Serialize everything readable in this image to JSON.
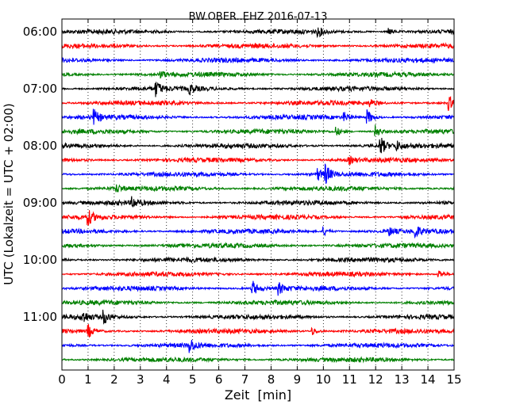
{
  "chart_data": {
    "type": "line",
    "title": "BW.OBER..EHZ 2016-07-13",
    "xlabel": "Zeit  [min]",
    "ylabel": "UTC (Lokalzeit = UTC + 02:00)",
    "xlim": [
      0,
      15
    ],
    "x_ticks": [
      0,
      1,
      2,
      3,
      4,
      5,
      6,
      7,
      8,
      9,
      10,
      11,
      12,
      13,
      14,
      15
    ],
    "y_tick_labels": [
      "06:00",
      "07:00",
      "08:00",
      "09:00",
      "10:00",
      "11:00"
    ],
    "trace_start_times": [
      "06:00",
      "06:15",
      "06:30",
      "06:45",
      "07:00",
      "07:15",
      "07:30",
      "07:45",
      "08:00",
      "08:15",
      "08:30",
      "08:45",
      "09:00",
      "09:15",
      "09:30",
      "09:45",
      "10:00",
      "10:15",
      "10:30",
      "10:45",
      "11:00",
      "11:15",
      "11:30",
      "11:45"
    ],
    "trace_duration_min": 15,
    "trace_colors": [
      "#000000",
      "#ff0000",
      "#0000ff",
      "#008000"
    ],
    "grid": {
      "x": "dotted",
      "y": false
    },
    "events": [
      {
        "trace": "06:00",
        "minute": 9.8,
        "amp": 0.6
      },
      {
        "trace": "06:00",
        "minute": 12.5,
        "amp": 0.5
      },
      {
        "trace": "06:45",
        "minute": 3.8,
        "amp": 0.4
      },
      {
        "trace": "07:00",
        "minute": 3.6,
        "amp": 1.0
      },
      {
        "trace": "07:00",
        "minute": 4.9,
        "amp": 0.6
      },
      {
        "trace": "07:15",
        "minute": 14.8,
        "amp": 1.0
      },
      {
        "trace": "07:15",
        "minute": 11.8,
        "amp": 0.5
      },
      {
        "trace": "07:30",
        "minute": 1.2,
        "amp": 1.1
      },
      {
        "trace": "07:30",
        "minute": 10.8,
        "amp": 0.6
      },
      {
        "trace": "07:30",
        "minute": 11.7,
        "amp": 1.0
      },
      {
        "trace": "07:45",
        "minute": 10.5,
        "amp": 0.6
      },
      {
        "trace": "07:45",
        "minute": 12.0,
        "amp": 0.9
      },
      {
        "trace": "08:00",
        "minute": 12.2,
        "amp": 1.2
      },
      {
        "trace": "08:00",
        "minute": 12.8,
        "amp": 0.6
      },
      {
        "trace": "08:15",
        "minute": 11.0,
        "amp": 0.5
      },
      {
        "trace": "08:30",
        "minute": 10.1,
        "amp": 1.2
      },
      {
        "trace": "08:30",
        "minute": 9.8,
        "amp": 0.8
      },
      {
        "trace": "08:45",
        "minute": 2.1,
        "amp": 0.5
      },
      {
        "trace": "09:00",
        "minute": 2.7,
        "amp": 0.7
      },
      {
        "trace": "09:15",
        "minute": 1.0,
        "amp": 1.0
      },
      {
        "trace": "09:30",
        "minute": 13.5,
        "amp": 0.9
      },
      {
        "trace": "09:30",
        "minute": 10.0,
        "amp": 0.6
      },
      {
        "trace": "09:30",
        "minute": 12.5,
        "amp": 0.6
      },
      {
        "trace": "10:15",
        "minute": 14.4,
        "amp": 0.7
      },
      {
        "trace": "10:30",
        "minute": 7.3,
        "amp": 1.1
      },
      {
        "trace": "10:30",
        "minute": 8.3,
        "amp": 0.8
      },
      {
        "trace": "11:00",
        "minute": 0.8,
        "amp": 0.8
      },
      {
        "trace": "11:00",
        "minute": 1.6,
        "amp": 0.9
      },
      {
        "trace": "11:15",
        "minute": 1.0,
        "amp": 0.9
      },
      {
        "trace": "11:15",
        "minute": 9.6,
        "amp": 0.5
      },
      {
        "trace": "11:30",
        "minute": 4.9,
        "amp": 0.9
      }
    ]
  }
}
